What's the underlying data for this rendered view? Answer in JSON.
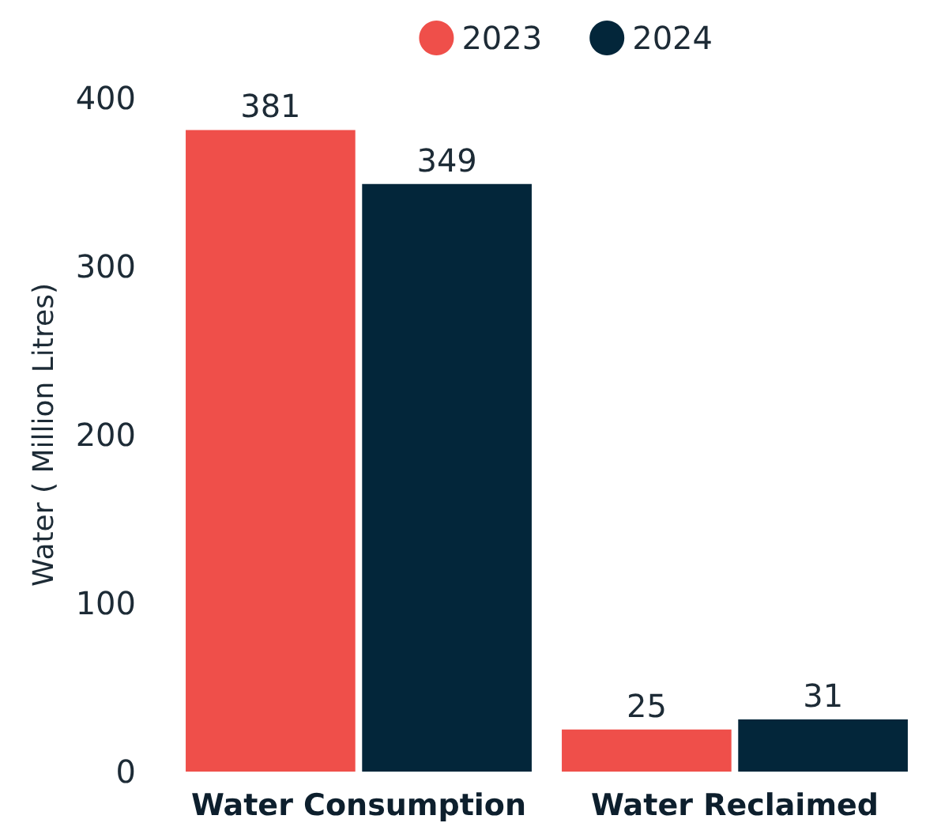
{
  "chart_data": {
    "type": "bar",
    "ylabel": "Water ( Million Litres)",
    "categories": [
      "Water Consumption",
      "Water Reclaimed"
    ],
    "series": [
      {
        "name": "2023",
        "color": "#ef4f4a",
        "values": [
          381,
          25
        ]
      },
      {
        "name": "2024",
        "color": "#03263a",
        "values": [
          349,
          31
        ]
      }
    ],
    "ylim": [
      0,
      400
    ],
    "yticks": [
      0,
      100,
      200,
      300,
      400
    ],
    "grid": false,
    "legend": "top right",
    "data_labels": true
  }
}
